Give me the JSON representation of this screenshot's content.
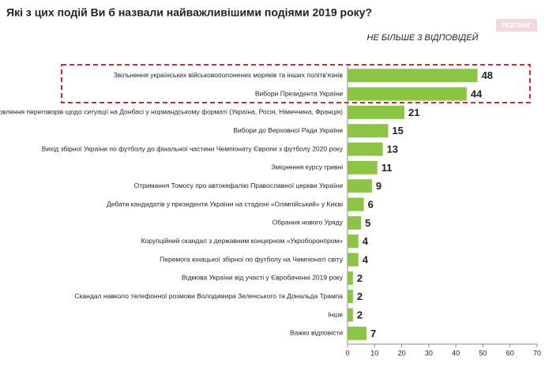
{
  "chart_data": {
    "type": "barh",
    "title": "Які з цих подій Ви б назвали найважливішими подіями 2019 року?",
    "subtitle": "НЕ БІЛЬШЕ 3 ВІДПОВІДЕЙ",
    "logo": "РЕЙТИНГ",
    "categories": [
      "Звільнення українських військовополонених моряків та інших політв'язнів",
      "Вибори Президента України",
      "Відновлення переговорів щодо ситуації на Донбасі у нормандському форматі (Україна, Росія, Німеччина, Франція)",
      "Вибори до Верховної Ради України",
      "Вихід збірної України по футболу до фінальної частини Чемпіонату Європи з футболу 2020 року",
      "Зміцнення курсу гривні",
      "Отримання Томосу про автокефалію Православної церкви України",
      "Дебати кандидатів у президенти України на стадіоні «Олімпійський» у Києві",
      "Обрання нового Уряду",
      "Корупційний скандал з державним концерном «Укроборонпром»",
      "Перемога юнацької збірної по футболу на Чемпіонаті світу",
      "Відмова України від участі у Євробаченні 2019 року",
      "Скандал навколо телефонної розмови Володимира Зеленського та Дональда Трампа",
      "Інше",
      "Важко відповісти"
    ],
    "values": [
      48,
      44,
      21,
      15,
      13,
      11,
      9,
      6,
      5,
      4,
      4,
      2,
      2,
      2,
      7
    ],
    "color": "#8cc544",
    "xlim": [
      0,
      70
    ],
    "xticks": [
      0,
      10,
      20,
      30,
      40,
      50,
      60,
      70
    ]
  }
}
